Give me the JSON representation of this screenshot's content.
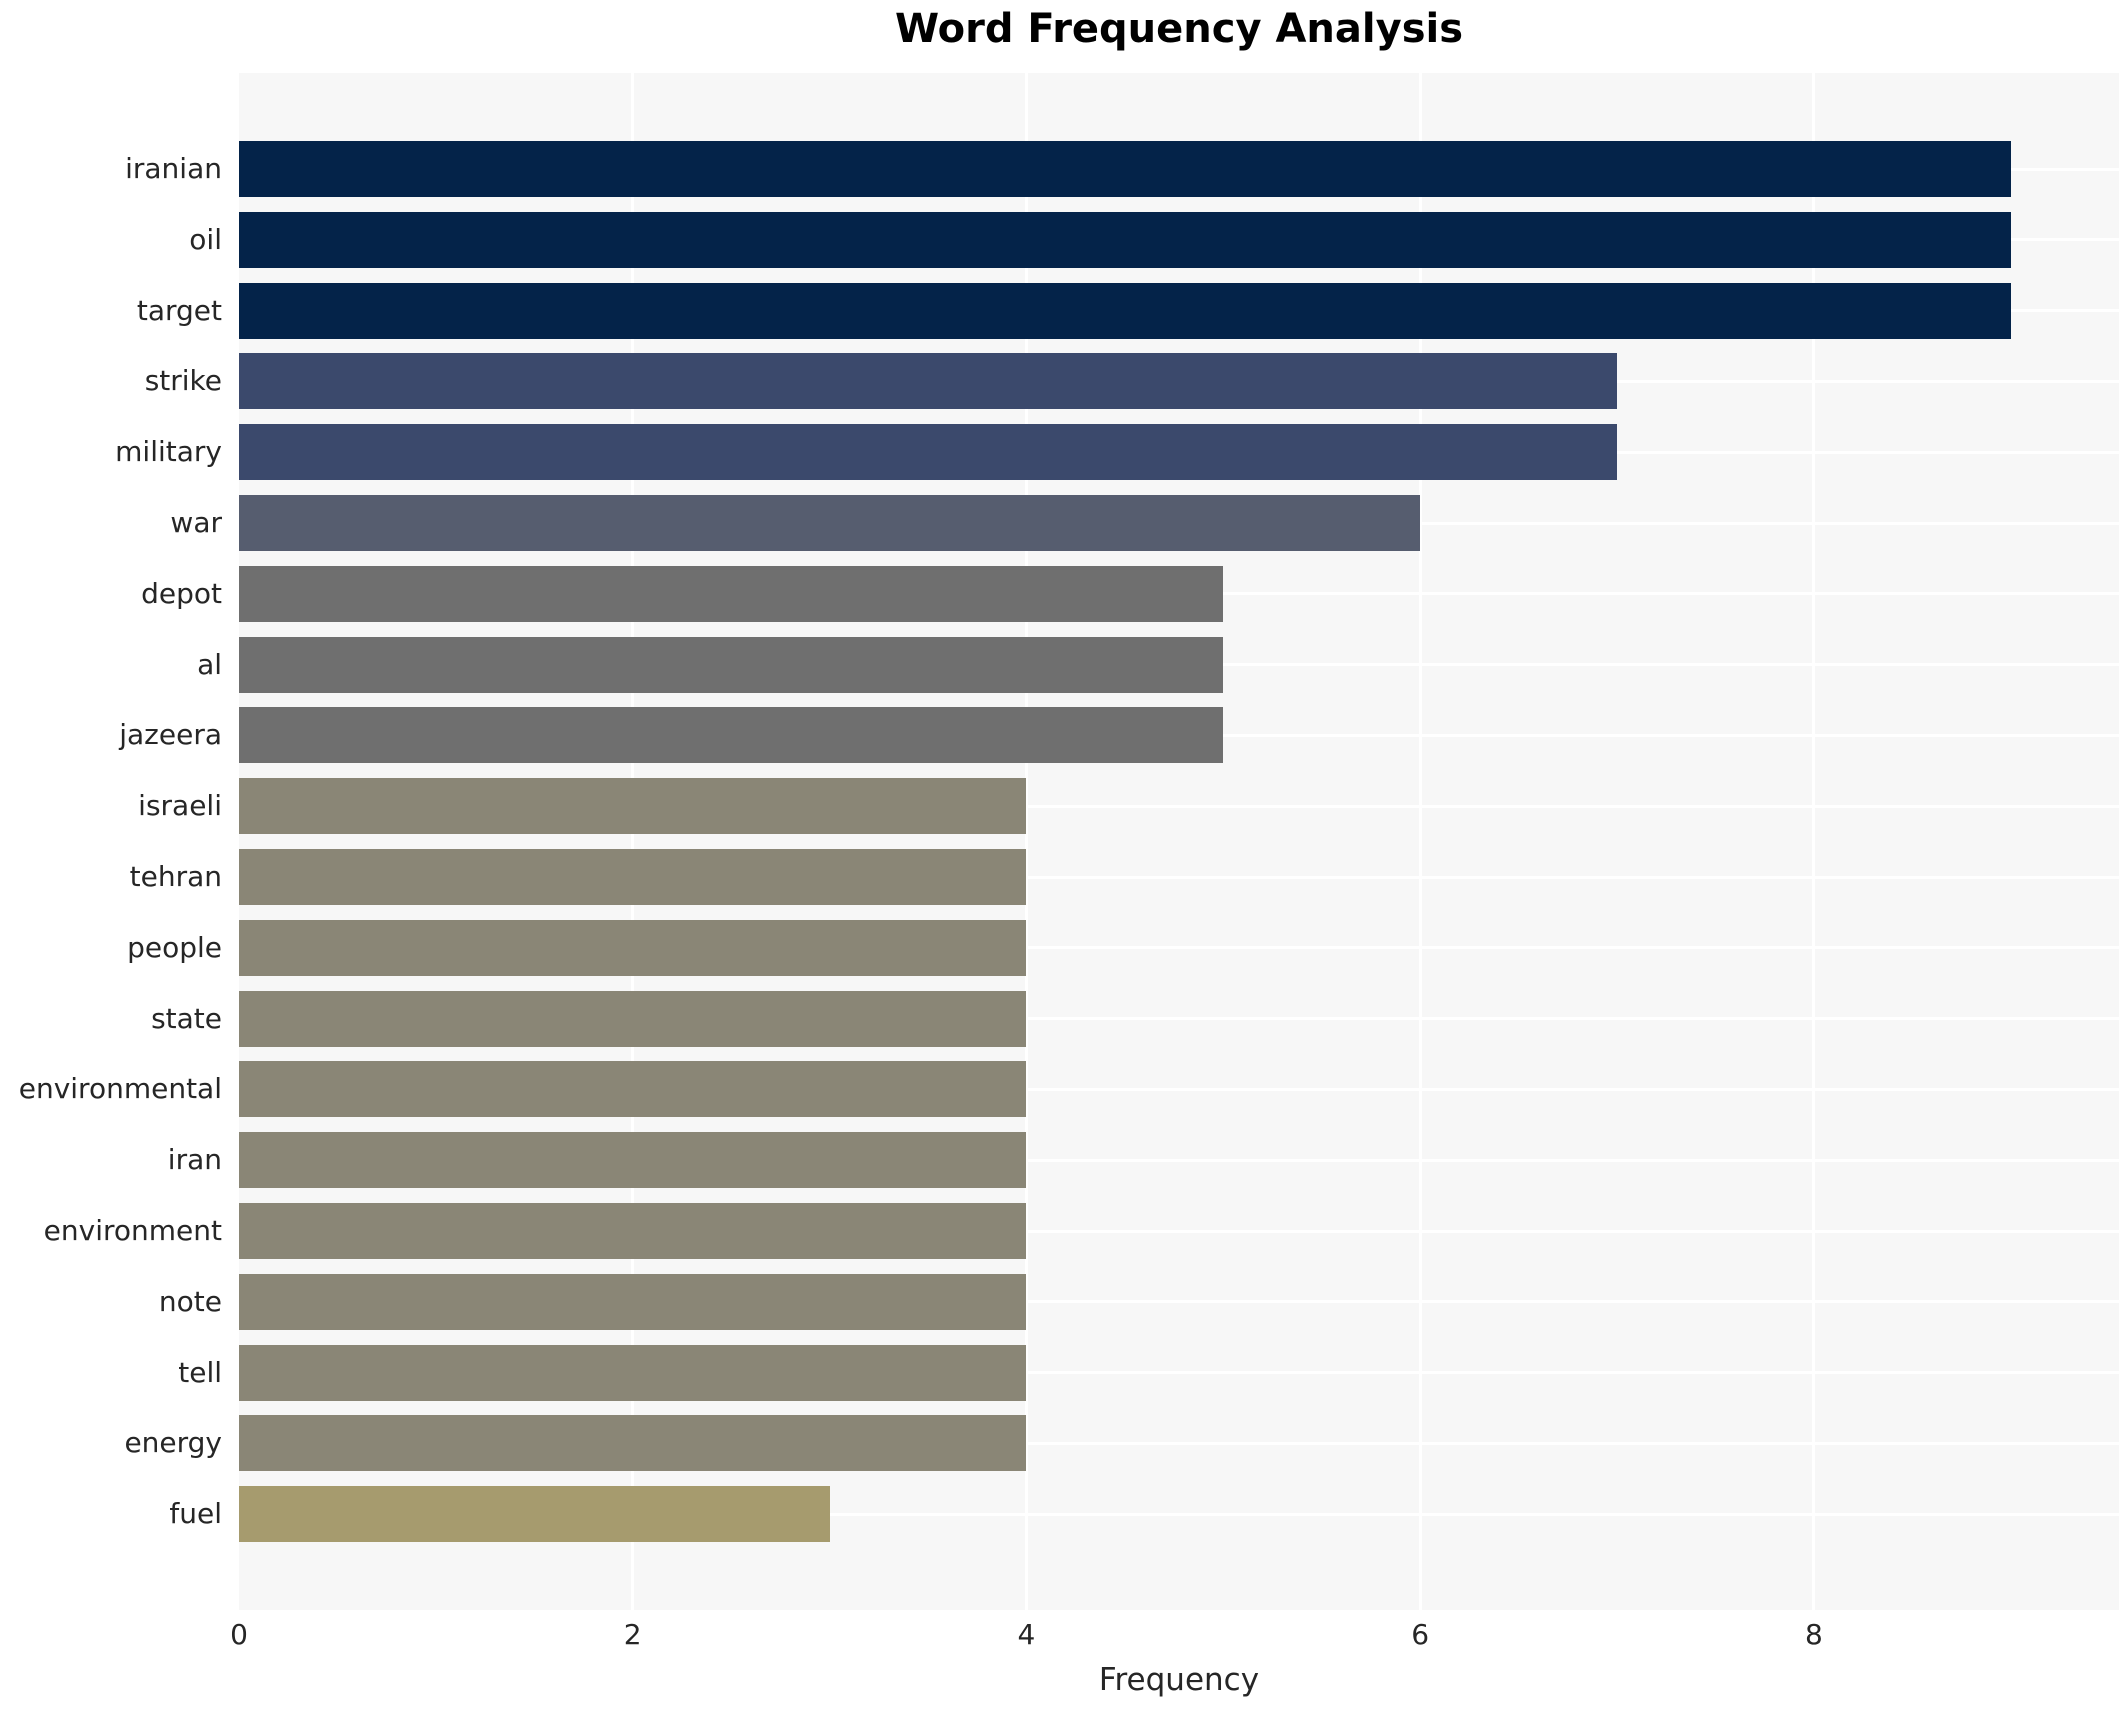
{
  "title": "Word Frequency Analysis",
  "chart_data": {
    "type": "bar",
    "orientation": "horizontal",
    "title": "Word Frequency Analysis",
    "xlabel": "Frequency",
    "ylabel": "",
    "categories": [
      "iranian",
      "oil",
      "target",
      "strike",
      "military",
      "war",
      "depot",
      "al",
      "jazeera",
      "israeli",
      "tehran",
      "people",
      "state",
      "environmental",
      "iran",
      "environment",
      "note",
      "tell",
      "energy",
      "fuel"
    ],
    "values": [
      9,
      9,
      9,
      7,
      7,
      6,
      5,
      5,
      5,
      4,
      4,
      4,
      4,
      4,
      4,
      4,
      4,
      4,
      4,
      3
    ],
    "bar_colors": [
      "#042349",
      "#042349",
      "#042349",
      "#3b496c",
      "#3b496c",
      "#565d6f",
      "#6f6f6f",
      "#6f6f6f",
      "#6f6f6f",
      "#8a8676",
      "#8a8676",
      "#8a8676",
      "#8a8676",
      "#8a8676",
      "#8a8676",
      "#8a8676",
      "#8a8676",
      "#8a8676",
      "#8a8676",
      "#a69b6e"
    ],
    "xlim": [
      0,
      9.55
    ],
    "x_ticks": [
      0,
      2,
      4,
      6,
      8
    ],
    "grid": true,
    "legend": "none",
    "plot_bg_color": "#f7f7f7",
    "grid_color": "#ffffff",
    "text_color": "#262626"
  }
}
